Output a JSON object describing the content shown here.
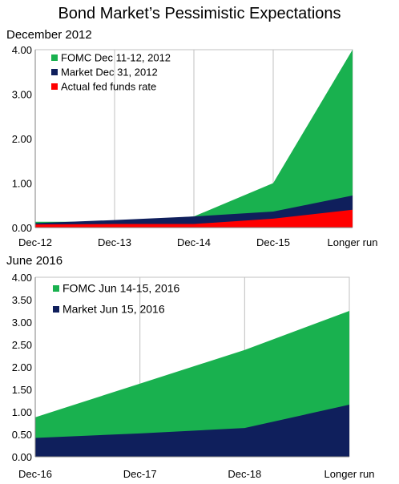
{
  "title": "Bond Market’s Pessimistic Expectations",
  "colors": {
    "fomc": "#19b14f",
    "market": "#0f1f5c",
    "actual": "#ff0000",
    "grid": "#c0c0c0"
  },
  "chart_data": [
    {
      "type": "area",
      "title": "December 2012",
      "categories": [
        "Dec-12",
        "Dec-13",
        "Dec-14",
        "Dec-15",
        "Longer run"
      ],
      "yticks": [
        "0.00",
        "1.00",
        "2.00",
        "3.00",
        "4.00"
      ],
      "ylim": [
        0,
        4
      ],
      "grid": "vertical",
      "legend_position": "top-left",
      "series": [
        {
          "name": "FOMC Dec 11-12, 2012",
          "color": "fomc",
          "values": [
            0.13,
            0.13,
            0.25,
            1.0,
            4.0
          ]
        },
        {
          "name": "Market Dec 31, 2012",
          "color": "market",
          "values": [
            0.1,
            0.17,
            0.25,
            0.36,
            0.72
          ]
        },
        {
          "name": "Actual fed funds rate",
          "color": "actual",
          "values": [
            0.07,
            0.08,
            0.08,
            0.2,
            0.4
          ]
        }
      ]
    },
    {
      "type": "area",
      "title": "June 2016",
      "categories": [
        "Dec-16",
        "Dec-17",
        "Dec-18",
        "Longer run"
      ],
      "yticks": [
        "0.00",
        "0.50",
        "1.00",
        "1.50",
        "2.00",
        "2.50",
        "3.00",
        "3.50",
        "4.00"
      ],
      "ylim": [
        0,
        4
      ],
      "grid": "vertical",
      "legend_position": "top-left",
      "series": [
        {
          "name": "FOMC Jun 14-15, 2016",
          "color": "fomc",
          "values": [
            0.88,
            1.63,
            2.38,
            3.25
          ]
        },
        {
          "name": "Market Jun 15, 2016",
          "color": "market",
          "values": [
            0.42,
            0.52,
            0.64,
            1.16
          ]
        }
      ]
    }
  ]
}
